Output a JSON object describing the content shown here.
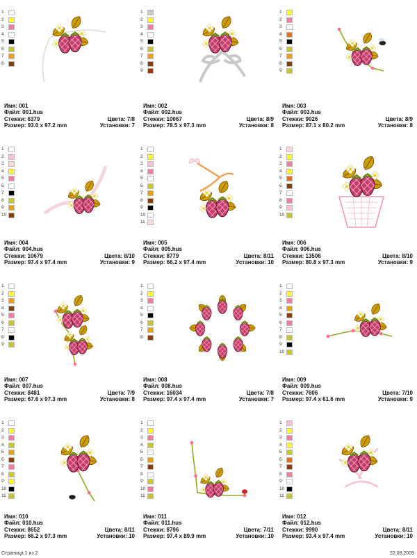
{
  "labels": {
    "name": "Имя:",
    "file": "Файл:",
    "stitches": "Стежки:",
    "size": "Размер:",
    "colors": "Цвета:",
    "stops": "Установки:"
  },
  "designs": [
    {
      "name": "001",
      "file": "001.hus",
      "stitches": "6379",
      "size": "93.0 x 97.2 mm",
      "colors": "7/8",
      "stops": "7",
      "swatches": [
        "#ffffff",
        "#ffff1a",
        "#ff7a9c",
        "#ffffff",
        "#000000",
        "#c8c823",
        "#f0a000",
        "#8b3a0a"
      ],
      "motif": "corner"
    },
    {
      "name": "002",
      "file": "002.hus",
      "stitches": "10067",
      "size": "78.5 x 97.3 mm",
      "colors": "8/9",
      "stops": "8",
      "swatches": [
        "#c8c8c8",
        "#ffff1a",
        "#ff7a9c",
        "#ffffff",
        "#000000",
        "#c8c823",
        "#f0a000",
        "#8b3a0a",
        "#a83000"
      ],
      "motif": "bow"
    },
    {
      "name": "003",
      "file": "003.hus",
      "stitches": "9026",
      "size": "87.1 x 80.2 mm",
      "colors": "8/9",
      "stops": "8",
      "swatches": [
        "#ffff1a",
        "#ff7a9c",
        "#ffffff",
        "#f07010",
        "#000000",
        "#c8c823",
        "#f0a000",
        "#8b3a0a",
        "#c8c823"
      ],
      "motif": "bee"
    },
    {
      "name": "004",
      "file": "004.hus",
      "stitches": "10679",
      "size": "97.4 x 97.4 mm",
      "colors": "8/10",
      "stops": "9",
      "swatches": [
        "#ffffff",
        "#ffc0d0",
        "#ffd8d8",
        "#ffff1a",
        "#ff7a9c",
        "#ffffff",
        "#000000",
        "#c8c823",
        "#f0a000",
        "#8b3a0a"
      ],
      "motif": "ribbon"
    },
    {
      "name": "005",
      "file": "005.hus",
      "stitches": "8779",
      "size": "66.2 x 97.4 mm",
      "colors": "8/11",
      "stops": "10",
      "swatches": [
        "#ffffff",
        "#ffff1a",
        "#ffc0d0",
        "#ff7a9c",
        "#ffffff",
        "#c8c823",
        "#f0a000",
        "#8b3a0a",
        "#000000",
        "#ffffff",
        "#ffd8d8"
      ],
      "motif": "butterfly"
    },
    {
      "name": "006",
      "file": "006.hus",
      "stitches": "13506",
      "size": "80.8 x 97.3 mm",
      "colors": "8/10",
      "stops": "9",
      "swatches": [
        "#ffd8e0",
        "#ffff1a",
        "#ff7a9c",
        "#ffff1a",
        "#f07010",
        "#8b3a0a",
        "#ffffff",
        "#ff7a9c",
        "#ffc0d0",
        "#c8c823"
      ],
      "motif": "basket"
    },
    {
      "name": "007",
      "file": "007.hus",
      "stitches": "8481",
      "size": "67.6 x 97.3 mm",
      "colors": "7/9",
      "stops": "8",
      "swatches": [
        "#ffffff",
        "#ffff1a",
        "#f0a000",
        "#8b3a0a",
        "#ff7a9c",
        "#c8c823",
        "#ffffff",
        "#000000",
        "#c8c823"
      ],
      "motif": "vine"
    },
    {
      "name": "008",
      "file": "008.hus",
      "stitches": "16034",
      "size": "97.4 x 97.4 mm",
      "colors": "7/8",
      "stops": "7",
      "swatches": [
        "#ffffff",
        "#ffff1a",
        "#ff7a9c",
        "#ffffff",
        "#000000",
        "#c8c823",
        "#f0a000",
        "#8b3a0a"
      ],
      "motif": "wreath"
    },
    {
      "name": "009",
      "file": "009.hus",
      "stitches": "7606",
      "size": "97.4 x 61.6 mm",
      "colors": "7/10",
      "stops": "9",
      "swatches": [
        "#ffffff",
        "#ffff1a",
        "#ff7a9c",
        "#f0a000",
        "#8b3a0a",
        "#ff7a9c",
        "#ffffff",
        "#c8c823",
        "#000000",
        "#c8c823"
      ],
      "motif": "branch"
    },
    {
      "name": "010",
      "file": "010.hus",
      "stitches": "8652",
      "size": "66.2 x 97.3 mm",
      "colors": "8/11",
      "stops": "10",
      "swatches": [
        "#ffffff",
        "#ffff1a",
        "#ff7a9c",
        "#c8c823",
        "#f0a000",
        "#8b3a0a",
        "#ff7a9c",
        "#c8c823",
        "#ffff1a",
        "#000000",
        "#c8c823"
      ],
      "motif": "bee2"
    },
    {
      "name": "011",
      "file": "011.hus",
      "stitches": "8796",
      "size": "97.4 x 89.9 mm",
      "colors": "7/11",
      "stops": "10",
      "swatches": [
        "#ffffff",
        "#ffff1a",
        "#ff7a9c",
        "#c8c823",
        "#ffffff",
        "#f0a000",
        "#8b3a0a",
        "#ffffff",
        "#c8c823",
        "#ff7a9c",
        "#c8c823"
      ],
      "motif": "frame"
    },
    {
      "name": "012",
      "file": "012.hus",
      "stitches": "9990",
      "size": "93.4 x 97.4 mm",
      "colors": "8/11",
      "stops": "10",
      "swatches": [
        "#ffc0d0",
        "#ffff1a",
        "#ff7a9c",
        "#ffff1a",
        "#c8c823",
        "#f07010",
        "#8b3a0a",
        "#ff7a9c",
        "#ffffff",
        "#000000",
        "#c8c823"
      ],
      "motif": "pinkbow"
    }
  ],
  "footer": {
    "page": "Страница 1 из 2",
    "date": "22.08.2009"
  }
}
